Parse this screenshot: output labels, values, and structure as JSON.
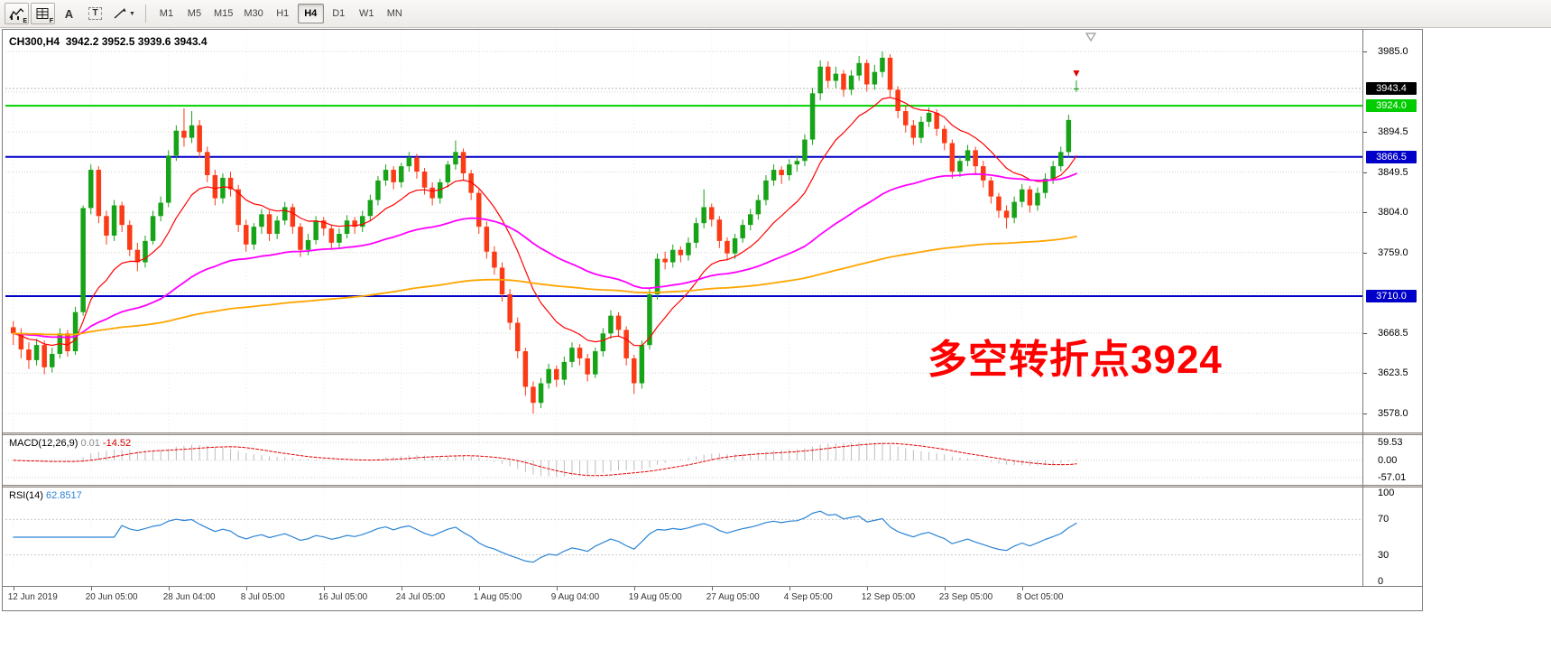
{
  "colors": {
    "up": "#17a317",
    "down": "#fa3b16",
    "ma_fast": "#ff0000",
    "ma_mid": "#ff00ff",
    "ma_slow": "#ffa500",
    "macd_hist": "#bdbdbd",
    "macd_signal": "#e60000",
    "rsi_line": "#2b84d6",
    "annotation": "#ff0000"
  },
  "toolbar": {
    "icons": [
      {
        "name": "chart-type-icon",
        "sub": "E"
      },
      {
        "name": "data-window-icon",
        "sub": "F"
      },
      {
        "name": "text-tool-icon",
        "glyph": "A"
      },
      {
        "name": "textbox-tool-icon",
        "glyph": "T"
      },
      {
        "name": "drawing-tools-icon",
        "caret": "▼"
      }
    ],
    "timeframes": [
      {
        "label": "M1",
        "active": false
      },
      {
        "label": "M5",
        "active": false
      },
      {
        "label": "M15",
        "active": false
      },
      {
        "label": "M30",
        "active": false
      },
      {
        "label": "H1",
        "active": false
      },
      {
        "label": "H4",
        "active": true
      },
      {
        "label": "D1",
        "active": false
      },
      {
        "label": "W1",
        "active": false
      },
      {
        "label": "MN",
        "active": false
      }
    ]
  },
  "info_bar": {
    "symbol_period": "CH300,H4",
    "ohlc_text": "3942.2 3952.5 3939.6 3943.4"
  },
  "annotation": {
    "text": "多空转折点3924"
  },
  "price_axis": {
    "visible_ticks": [
      "3985.0",
      "3894.5",
      "3849.5",
      "3804.0",
      "3759.0",
      "3668.5",
      "3623.5",
      "3578.0"
    ],
    "tick_prices": [
      3985.0,
      3894.5,
      3849.5,
      3804.0,
      3759.0,
      3668.5,
      3623.5,
      3578.0
    ],
    "grid_prices": [
      3985.0,
      3939.5,
      3894.5,
      3849.5,
      3804.0,
      3759.0,
      3713.5,
      3668.5,
      3623.5,
      3578.0
    ],
    "badges": [
      {
        "label": "3943.4",
        "price": 3943.4,
        "bg": "#000000",
        "fg": "#ffffff",
        "role": "current-price"
      },
      {
        "label": "3924.0",
        "price": 3924.0,
        "bg": "#00cc00",
        "fg": "#ffffff",
        "role": "hline-level"
      },
      {
        "label": "3866.5",
        "price": 3866.5,
        "bg": "#0000c8",
        "fg": "#ffffff",
        "role": "hline-level"
      },
      {
        "label": "3710.0",
        "price": 3710.0,
        "bg": "#0000c8",
        "fg": "#ffffff",
        "role": "hline-level"
      }
    ]
  },
  "hlines": [
    {
      "price": 3924.0,
      "color": "#00d200"
    },
    {
      "price": 3866.5,
      "color": "#0000c8"
    },
    {
      "price": 3710.0,
      "color": "#0000c8"
    }
  ],
  "macd_panel": {
    "label": "MACD(12,26,9)",
    "value_main": "0.01",
    "value_signal": "-14.52",
    "scale": [
      "59.53",
      "0.00",
      "-57.01"
    ],
    "scale_max": 59.53,
    "scale_min": -57.01
  },
  "rsi_panel": {
    "label": "RSI(14)",
    "value": "62.8517",
    "scale": [
      "100",
      "70",
      "30",
      "0"
    ],
    "levels": [
      70,
      30
    ]
  },
  "chart_data": {
    "type": "candlestick",
    "title": "CH300,H4",
    "symbol": "CH300",
    "period": "H4",
    "last_ohlc": {
      "open": 3942.2,
      "high": 3952.5,
      "low": 3939.6,
      "close": 3943.4
    },
    "ylim": [
      3556.7,
      4009.4
    ],
    "y_ticks": [
      3578.0,
      3623.5,
      3668.5,
      3713.5,
      3759.0,
      3804.0,
      3849.5,
      3894.5,
      3939.5,
      3985.0
    ],
    "indicators": [
      "MACD(12,26,9)",
      "RSI(14)"
    ],
    "moving_averages": [
      {
        "name": "ma-fast",
        "method": "ema",
        "period": 13,
        "color": "#ff0000",
        "width": 1.2
      },
      {
        "name": "ma-mid",
        "method": "ema",
        "period": 55,
        "color": "#ff00ff",
        "width": 1.8
      },
      {
        "name": "ma-slow",
        "method": "ema",
        "period": 200,
        "color": "#ffa500",
        "width": 1.8
      }
    ],
    "x_ticks": [
      {
        "index": 0,
        "label": "12 Jun 2019"
      },
      {
        "index": 10,
        "label": "20 Jun 05:00"
      },
      {
        "index": 20,
        "label": "28 Jun 04:00"
      },
      {
        "index": 30,
        "label": "8 Jul 05:00"
      },
      {
        "index": 40,
        "label": "16 Jul 05:00"
      },
      {
        "index": 50,
        "label": "24 Jul 05:00"
      },
      {
        "index": 60,
        "label": "1 Aug 05:00"
      },
      {
        "index": 70,
        "label": "9 Aug 04:00"
      },
      {
        "index": 80,
        "label": "19 Aug 05:00"
      },
      {
        "index": 90,
        "label": "27 Aug 05:00"
      },
      {
        "index": 100,
        "label": "4 Sep 05:00"
      },
      {
        "index": 110,
        "label": "12 Sep 05:00"
      },
      {
        "index": 120,
        "label": "23 Sep 05:00"
      },
      {
        "index": 130,
        "label": "8 Oct 05:00"
      }
    ],
    "ohlc": [
      [
        3675,
        3682,
        3655,
        3668
      ],
      [
        3668,
        3674,
        3640,
        3650
      ],
      [
        3650,
        3658,
        3628,
        3638
      ],
      [
        3638,
        3662,
        3632,
        3655
      ],
      [
        3655,
        3660,
        3622,
        3630
      ],
      [
        3630,
        3652,
        3624,
        3645
      ],
      [
        3645,
        3674,
        3640,
        3668
      ],
      [
        3668,
        3672,
        3642,
        3648
      ],
      [
        3648,
        3698,
        3644,
        3692
      ],
      [
        3692,
        3812,
        3688,
        3809
      ],
      [
        3809,
        3858,
        3802,
        3852
      ],
      [
        3852,
        3856,
        3792,
        3800
      ],
      [
        3800,
        3806,
        3768,
        3778
      ],
      [
        3778,
        3818,
        3772,
        3812
      ],
      [
        3812,
        3816,
        3782,
        3790
      ],
      [
        3790,
        3795,
        3755,
        3762
      ],
      [
        3762,
        3770,
        3738,
        3748
      ],
      [
        3748,
        3778,
        3742,
        3772
      ],
      [
        3772,
        3806,
        3768,
        3800
      ],
      [
        3800,
        3822,
        3794,
        3815
      ],
      [
        3815,
        3874,
        3810,
        3868
      ],
      [
        3868,
        3902,
        3862,
        3896
      ],
      [
        3896,
        3921,
        3878,
        3888
      ],
      [
        3888,
        3918,
        3882,
        3902
      ],
      [
        3902,
        3908,
        3866,
        3872
      ],
      [
        3872,
        3878,
        3838,
        3846
      ],
      [
        3846,
        3852,
        3812,
        3820
      ],
      [
        3820,
        3848,
        3814,
        3843
      ],
      [
        3843,
        3850,
        3822,
        3830
      ],
      [
        3830,
        3835,
        3782,
        3790
      ],
      [
        3790,
        3796,
        3760,
        3768
      ],
      [
        3768,
        3792,
        3762,
        3788
      ],
      [
        3788,
        3808,
        3780,
        3802
      ],
      [
        3802,
        3806,
        3772,
        3780
      ],
      [
        3780,
        3800,
        3774,
        3795
      ],
      [
        3795,
        3816,
        3790,
        3810
      ],
      [
        3810,
        3814,
        3780,
        3788
      ],
      [
        3788,
        3792,
        3754,
        3762
      ],
      [
        3762,
        3780,
        3756,
        3773
      ],
      [
        3773,
        3800,
        3768,
        3795
      ],
      [
        3795,
        3799,
        3778,
        3786
      ],
      [
        3786,
        3790,
        3762,
        3770
      ],
      [
        3770,
        3786,
        3764,
        3780
      ],
      [
        3780,
        3801,
        3775,
        3795
      ],
      [
        3795,
        3799,
        3780,
        3788
      ],
      [
        3788,
        3806,
        3782,
        3800
      ],
      [
        3800,
        3824,
        3794,
        3818
      ],
      [
        3818,
        3845,
        3812,
        3840
      ],
      [
        3840,
        3858,
        3834,
        3852
      ],
      [
        3852,
        3856,
        3830,
        3838
      ],
      [
        3838,
        3860,
        3832,
        3856
      ],
      [
        3856,
        3872,
        3850,
        3866
      ],
      [
        3866,
        3870,
        3842,
        3850
      ],
      [
        3850,
        3854,
        3824,
        3832
      ],
      [
        3832,
        3838,
        3812,
        3820
      ],
      [
        3820,
        3842,
        3814,
        3838
      ],
      [
        3838,
        3862,
        3832,
        3858
      ],
      [
        3858,
        3885,
        3852,
        3872
      ],
      [
        3872,
        3876,
        3840,
        3848
      ],
      [
        3848,
        3852,
        3818,
        3826
      ],
      [
        3826,
        3830,
        3780,
        3788
      ],
      [
        3788,
        3794,
        3752,
        3760
      ],
      [
        3760,
        3766,
        3734,
        3742
      ],
      [
        3742,
        3748,
        3704,
        3712
      ],
      [
        3712,
        3718,
        3672,
        3680
      ],
      [
        3680,
        3686,
        3640,
        3648
      ],
      [
        3648,
        3652,
        3598,
        3608
      ],
      [
        3608,
        3614,
        3578,
        3590
      ],
      [
        3590,
        3618,
        3584,
        3612
      ],
      [
        3612,
        3634,
        3606,
        3628
      ],
      [
        3628,
        3632,
        3608,
        3616
      ],
      [
        3616,
        3642,
        3610,
        3636
      ],
      [
        3636,
        3658,
        3630,
        3652
      ],
      [
        3652,
        3656,
        3632,
        3640
      ],
      [
        3640,
        3645,
        3614,
        3622
      ],
      [
        3622,
        3652,
        3618,
        3648
      ],
      [
        3648,
        3674,
        3642,
        3668
      ],
      [
        3668,
        3694,
        3662,
        3688
      ],
      [
        3688,
        3692,
        3664,
        3672
      ],
      [
        3672,
        3676,
        3632,
        3640
      ],
      [
        3640,
        3644,
        3600,
        3612
      ],
      [
        3612,
        3660,
        3606,
        3655
      ],
      [
        3655,
        3718,
        3650,
        3712
      ],
      [
        3712,
        3758,
        3706,
        3752
      ],
      [
        3752,
        3760,
        3740,
        3748
      ],
      [
        3748,
        3768,
        3742,
        3762
      ],
      [
        3762,
        3766,
        3748,
        3756
      ],
      [
        3756,
        3776,
        3750,
        3770
      ],
      [
        3770,
        3798,
        3764,
        3792
      ],
      [
        3792,
        3830,
        3786,
        3810
      ],
      [
        3810,
        3814,
        3788,
        3796
      ],
      [
        3796,
        3800,
        3764,
        3772
      ],
      [
        3772,
        3776,
        3750,
        3758
      ],
      [
        3758,
        3780,
        3752,
        3775
      ],
      [
        3775,
        3796,
        3770,
        3790
      ],
      [
        3790,
        3808,
        3784,
        3802
      ],
      [
        3802,
        3824,
        3796,
        3818
      ],
      [
        3818,
        3846,
        3812,
        3840
      ],
      [
        3840,
        3858,
        3834,
        3852
      ],
      [
        3852,
        3856,
        3836,
        3846
      ],
      [
        3846,
        3864,
        3840,
        3858
      ],
      [
        3858,
        3868,
        3850,
        3862
      ],
      [
        3862,
        3892,
        3856,
        3886
      ],
      [
        3886,
        3944,
        3880,
        3938
      ],
      [
        3938,
        3975,
        3930,
        3968
      ],
      [
        3968,
        3974,
        3944,
        3952
      ],
      [
        3952,
        3968,
        3944,
        3960
      ],
      [
        3960,
        3964,
        3934,
        3942
      ],
      [
        3942,
        3964,
        3936,
        3958
      ],
      [
        3958,
        3980,
        3952,
        3972
      ],
      [
        3972,
        3976,
        3940,
        3948
      ],
      [
        3948,
        3970,
        3942,
        3962
      ],
      [
        3962,
        3985,
        3956,
        3978
      ],
      [
        3978,
        3982,
        3934,
        3942
      ],
      [
        3942,
        3946,
        3910,
        3918
      ],
      [
        3918,
        3924,
        3894,
        3902
      ],
      [
        3902,
        3908,
        3880,
        3888
      ],
      [
        3888,
        3912,
        3882,
        3906
      ],
      [
        3906,
        3922,
        3900,
        3916
      ],
      [
        3916,
        3920,
        3890,
        3898
      ],
      [
        3898,
        3902,
        3874,
        3882
      ],
      [
        3882,
        3886,
        3842,
        3850
      ],
      [
        3850,
        3868,
        3844,
        3862
      ],
      [
        3862,
        3880,
        3856,
        3874
      ],
      [
        3874,
        3878,
        3848,
        3856
      ],
      [
        3856,
        3862,
        3832,
        3840
      ],
      [
        3840,
        3844,
        3814,
        3822
      ],
      [
        3822,
        3826,
        3798,
        3806
      ],
      [
        3806,
        3812,
        3786,
        3798
      ],
      [
        3798,
        3822,
        3792,
        3816
      ],
      [
        3816,
        3836,
        3810,
        3830
      ],
      [
        3830,
        3834,
        3804,
        3812
      ],
      [
        3812,
        3832,
        3806,
        3826
      ],
      [
        3826,
        3848,
        3820,
        3842
      ],
      [
        3842,
        3862,
        3836,
        3856
      ],
      [
        3856,
        3878,
        3850,
        3872
      ],
      [
        3872,
        3914,
        3866,
        3908
      ],
      [
        3942.2,
        3952.5,
        3939.6,
        3943.4
      ]
    ]
  }
}
